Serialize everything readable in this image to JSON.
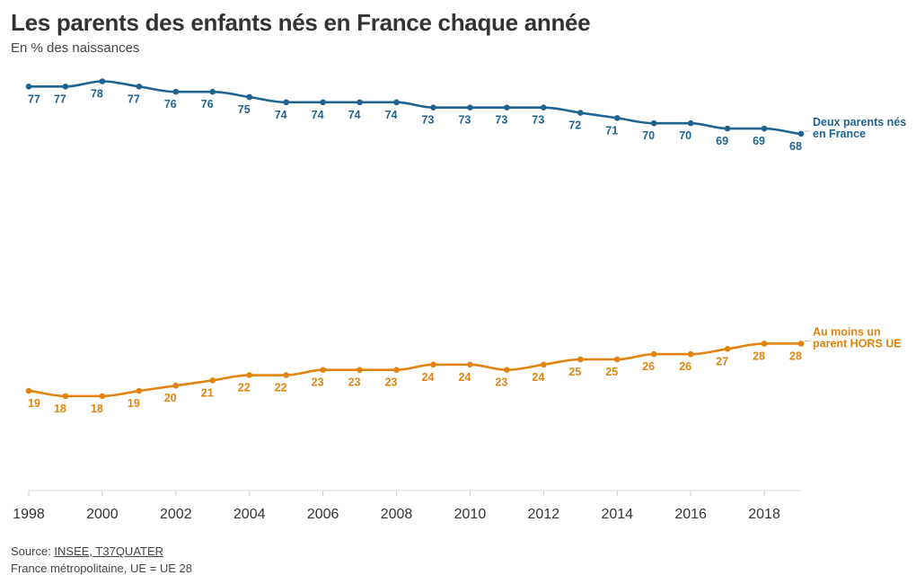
{
  "header": {
    "title": "Les parents des enfants nés en France chaque année",
    "subtitle": "En % des naissances"
  },
  "footer": {
    "source_prefix": "Source: ",
    "source_link": "INSEE, T37QUATER",
    "note": "France métropolitaine, UE = UE 28"
  },
  "chart_data": {
    "type": "line",
    "title": "Les parents des enfants nés en France chaque année",
    "subtitle": "En % des naissances",
    "x": [
      1998,
      1999,
      2000,
      2001,
      2002,
      2003,
      2004,
      2005,
      2006,
      2007,
      2008,
      2009,
      2010,
      2011,
      2012,
      2013,
      2014,
      2015,
      2016,
      2017,
      2018,
      2019
    ],
    "x_ticks": [
      "1998",
      "2000",
      "2002",
      "2004",
      "2006",
      "2008",
      "2010",
      "2012",
      "2014",
      "2016",
      "2018"
    ],
    "ylim": [
      0,
      80
    ],
    "grid": false,
    "series": [
      {
        "name_lines": [
          "Deux parents nés",
          "en France"
        ],
        "color": "#1f6391",
        "values": [
          77,
          77,
          78,
          77,
          76,
          76,
          75,
          74,
          74,
          74,
          74,
          73,
          73,
          73,
          73,
          72,
          71,
          70,
          70,
          69,
          69,
          68
        ]
      },
      {
        "name_lines": [
          "Au moins un",
          "parent HORS UE"
        ],
        "color": "#e2830e",
        "values": [
          19,
          18,
          18,
          19,
          20,
          21,
          22,
          22,
          23,
          23,
          23,
          24,
          24,
          23,
          24,
          25,
          25,
          26,
          26,
          27,
          28,
          28
        ]
      }
    ]
  }
}
